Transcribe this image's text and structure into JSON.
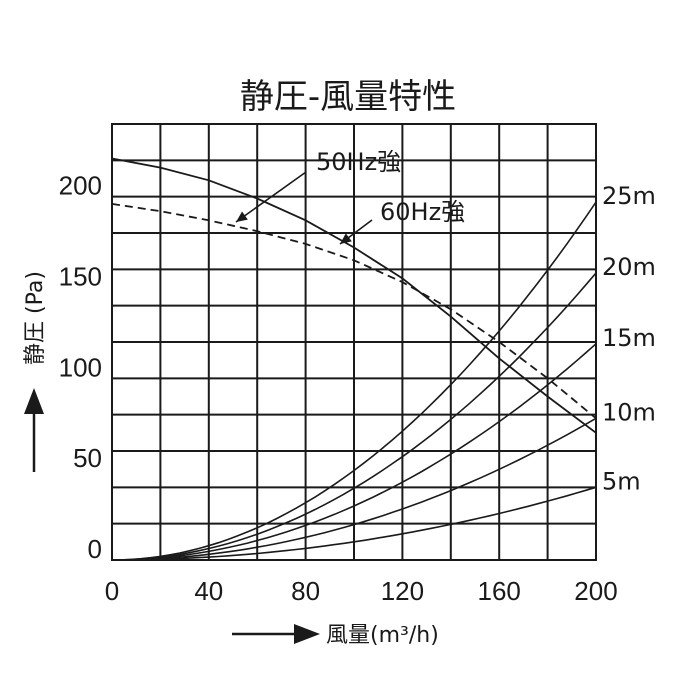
{
  "chart_data": {
    "type": "line",
    "title": "静圧-風量特性",
    "xlabel": "風量(m³/h)",
    "ylabel": "静圧 (Pa)",
    "xlim": [
      0,
      200
    ],
    "ylim": [
      0,
      240
    ],
    "x_ticks": [
      "0",
      "40",
      "80",
      "120",
      "160",
      "200"
    ],
    "y_ticks": [
      "0",
      "50",
      "100",
      "150",
      "200"
    ],
    "grid": true,
    "fan_curves": [
      {
        "name": "50Hz強",
        "style": "solid",
        "x": [
          0,
          20,
          40,
          60,
          80,
          100,
          120,
          140,
          160,
          180,
          200
        ],
        "y": [
          221,
          216,
          209,
          199,
          187,
          172,
          155,
          134,
          111,
          90,
          70
        ]
      },
      {
        "name": "60Hz強",
        "style": "dashed",
        "x": [
          0,
          20,
          40,
          60,
          80,
          100,
          120,
          140,
          160,
          180,
          200
        ],
        "y": [
          196,
          192,
          187,
          181,
          174,
          165,
          153,
          138,
          120,
          100,
          78
        ]
      }
    ],
    "duct_curves": [
      {
        "name": "25m",
        "y_at_200": 197
      },
      {
        "name": "20m",
        "y_at_200": 158
      },
      {
        "name": "15m",
        "y_at_200": 119
      },
      {
        "name": "10m",
        "y_at_200": 78
      },
      {
        "name": "5m",
        "y_at_200": 40
      }
    ]
  }
}
